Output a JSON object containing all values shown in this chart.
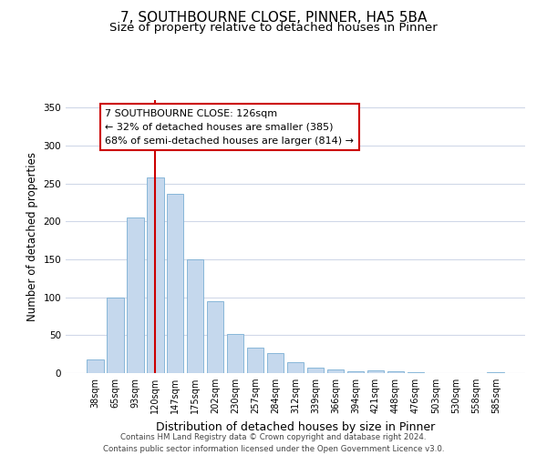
{
  "title": "7, SOUTHBOURNE CLOSE, PINNER, HA5 5BA",
  "subtitle": "Size of property relative to detached houses in Pinner",
  "xlabel": "Distribution of detached houses by size in Pinner",
  "ylabel": "Number of detached properties",
  "bar_labels": [
    "38sqm",
    "65sqm",
    "93sqm",
    "120sqm",
    "147sqm",
    "175sqm",
    "202sqm",
    "230sqm",
    "257sqm",
    "284sqm",
    "312sqm",
    "339sqm",
    "366sqm",
    "394sqm",
    "421sqm",
    "448sqm",
    "476sqm",
    "503sqm",
    "530sqm",
    "558sqm",
    "585sqm"
  ],
  "bar_values": [
    18,
    100,
    205,
    258,
    236,
    150,
    95,
    52,
    34,
    26,
    15,
    7,
    5,
    2,
    4,
    2,
    1,
    0,
    0,
    0,
    1
  ],
  "bar_color": "#c5d8ed",
  "bar_edge_color": "#7aafd4",
  "vline_x_index": 3,
  "vline_color": "#cc0000",
  "annotation_title": "7 SOUTHBOURNE CLOSE: 126sqm",
  "annotation_line1": "← 32% of detached houses are smaller (385)",
  "annotation_line2": "68% of semi-detached houses are larger (814) →",
  "annotation_box_color": "#ffffff",
  "annotation_box_edge_color": "#cc0000",
  "ylim": [
    0,
    360
  ],
  "yticks": [
    0,
    50,
    100,
    150,
    200,
    250,
    300,
    350
  ],
  "footer_line1": "Contains HM Land Registry data © Crown copyright and database right 2024.",
  "footer_line2": "Contains public sector information licensed under the Open Government Licence v3.0.",
  "background_color": "#ffffff",
  "plot_background_color": "#ffffff",
  "grid_color": "#d0d8e8"
}
